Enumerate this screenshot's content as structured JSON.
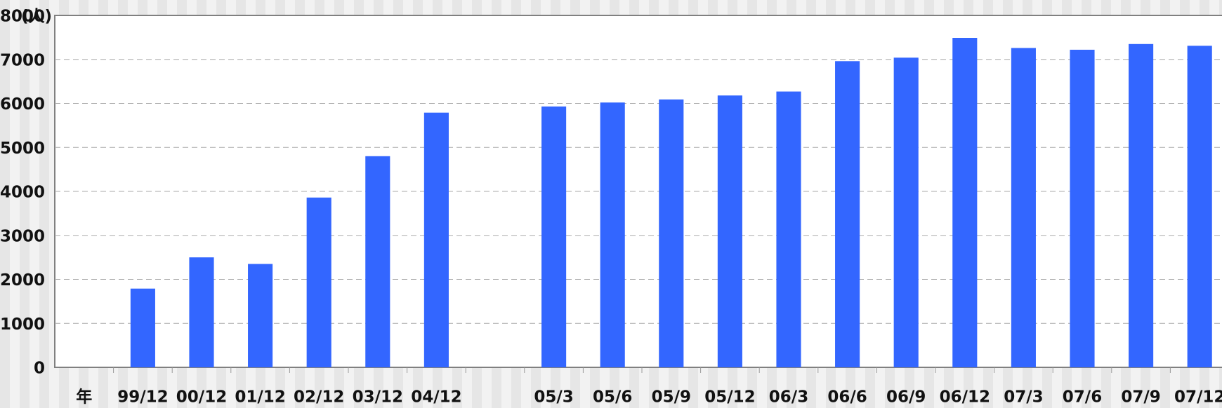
{
  "chart_data": {
    "type": "bar",
    "y_axis_label": "(人)",
    "categories": [
      "年",
      "99/12",
      "00/12",
      "01/12",
      "02/12",
      "03/12",
      "04/12",
      null,
      "05/3",
      "05/6",
      "05/9",
      "05/12",
      "06/3",
      "06/6",
      "06/9",
      "06/12",
      "07/3",
      "07/6",
      "07/9",
      "07/12"
    ],
    "values": [
      null,
      1790,
      2500,
      2350,
      3860,
      4800,
      5790,
      null,
      5930,
      6020,
      6090,
      6180,
      6270,
      6960,
      7040,
      7490,
      7260,
      7220,
      7350,
      7310
    ],
    "color": "#3366ff",
    "ylim": [
      0,
      8000
    ],
    "yticks": [
      0,
      1000,
      2000,
      3000,
      4000,
      5000,
      6000,
      7000,
      8000
    ],
    "grid": true
  }
}
